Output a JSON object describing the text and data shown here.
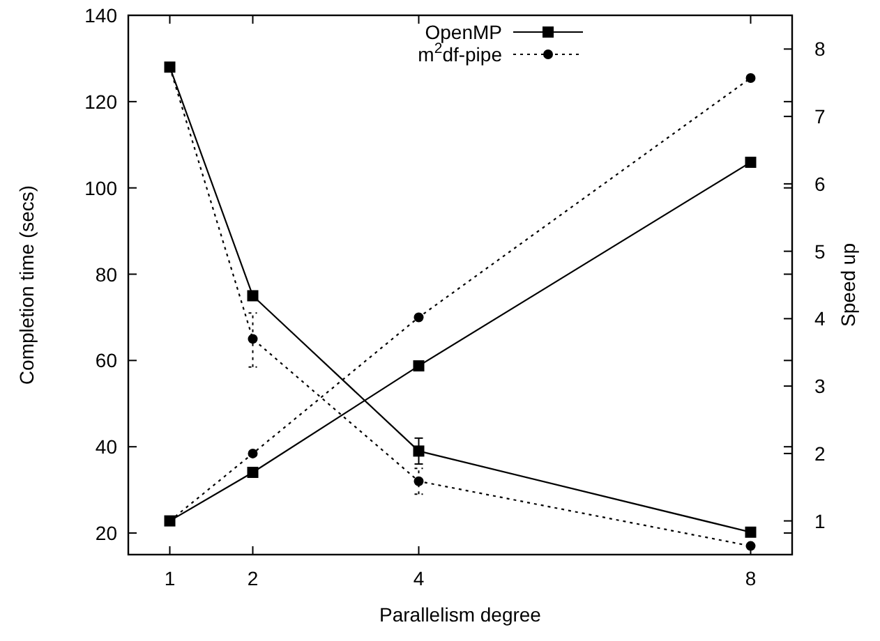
{
  "chart_data": {
    "type": "line",
    "xlabel": "Parallelism degree",
    "ylabel": "Completion time (secs)",
    "y2label": "Speed up",
    "x": [
      1,
      2,
      4,
      8
    ],
    "xlim": [
      0.5,
      8.5
    ],
    "xticks": [
      1,
      2,
      4,
      8
    ],
    "ylim": [
      15,
      140
    ],
    "yticks": [
      20,
      40,
      60,
      80,
      100,
      120,
      140
    ],
    "y2lim": [
      0.5,
      8.5
    ],
    "y2ticks": [
      1,
      2,
      3,
      4,
      5,
      6,
      7,
      8
    ],
    "legend": "top",
    "grid": false,
    "series": [
      {
        "name": "OpenMP",
        "color": "#000000",
        "marker": "square",
        "line_style": "solid",
        "values": [
          128,
          75,
          39,
          20.2
        ],
        "errors": [
          null,
          null,
          [
            36,
            42
          ],
          null
        ]
      },
      {
        "name": "m$^{2}$df-pipe",
        "color": "#000000",
        "marker": "circle",
        "line_style": "dotted",
        "values": [
          128,
          65,
          32,
          17
        ],
        "errors": [
          null,
          [
            58.5,
            71
          ],
          [
            29,
            35
          ],
          null
        ]
      },
      {
        "color": "#000000",
        "marker": "square",
        "line_style": "solid",
        "axis": "y2",
        "values": [
          1.0,
          1.72,
          3.3,
          6.32
        ]
      },
      {
        "color": "#000000",
        "marker": "circle",
        "line_style": "dotted",
        "axis": "y2",
        "values": [
          1.0,
          2.0,
          4.02,
          7.57
        ]
      }
    ]
  }
}
